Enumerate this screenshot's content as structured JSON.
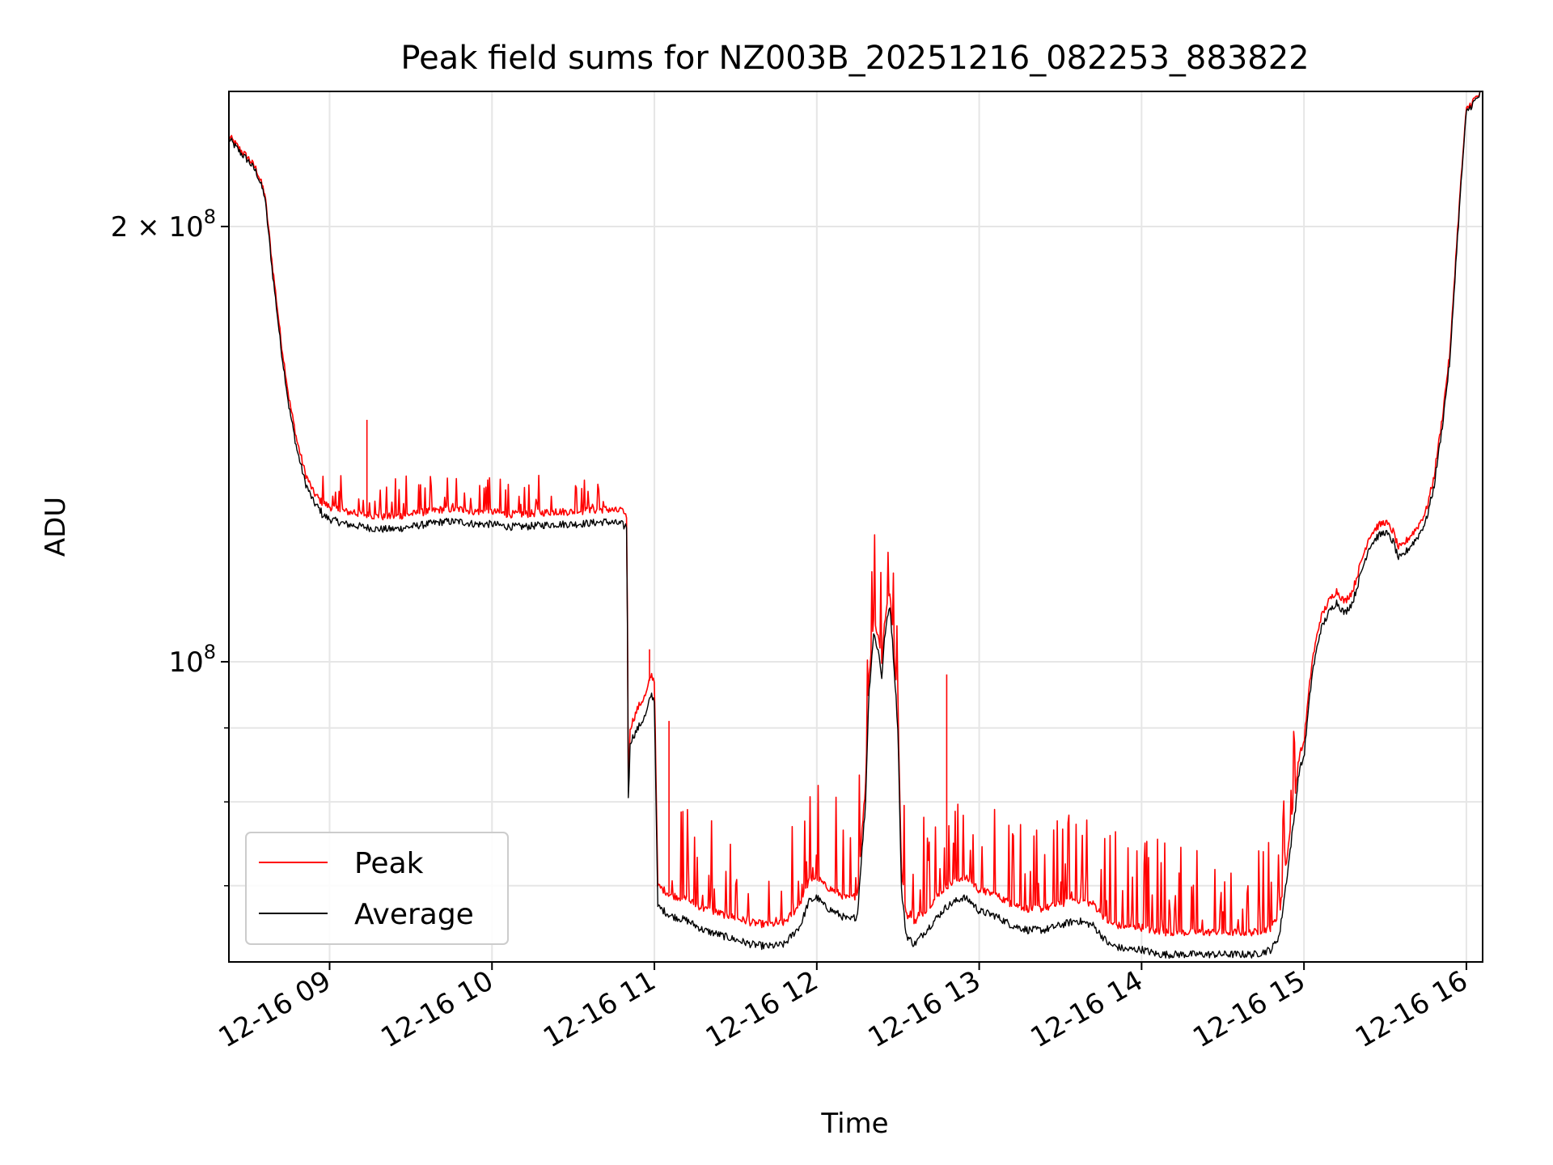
{
  "chart_data": {
    "type": "line",
    "title": "Peak field sums for NZ003B_20251216_082253_883822",
    "xlabel": "Time",
    "ylabel": "ADU",
    "yscale": "log",
    "xlim_hours": [
      8.38,
      16.1
    ],
    "ylim": [
      62000000,
      248000000
    ],
    "x_tick_hours": [
      9,
      10,
      11,
      12,
      13,
      14,
      15,
      16
    ],
    "x_tick_labels": [
      "12-16 09",
      "12-16 10",
      "12-16 11",
      "12-16 12",
      "12-16 13",
      "12-16 14",
      "12-16 15",
      "12-16 16"
    ],
    "y_major_ticks": [
      {
        "value": 100000000,
        "base": "10",
        "exp": "8"
      },
      {
        "value": 200000000,
        "mant": "2",
        "base": "10",
        "exp": "8"
      }
    ],
    "y_minor_ticks": [
      70000000,
      80000000,
      90000000
    ],
    "grid": true,
    "legend": {
      "position": "lower-left",
      "entries": [
        {
          "label": "Peak",
          "color": "#ff0000"
        },
        {
          "label": "Average",
          "color": "#000000"
        }
      ]
    },
    "series": [
      {
        "name": "Average",
        "color": "#000000",
        "x": [
          8.38,
          8.45,
          8.5,
          8.55,
          8.6,
          8.65,
          8.7,
          8.75,
          8.8,
          8.85,
          8.9,
          8.95,
          9.0,
          9.1,
          9.2,
          9.3,
          9.4,
          9.5,
          9.6,
          9.7,
          9.8,
          9.9,
          10.0,
          10.1,
          10.2,
          10.3,
          10.4,
          10.5,
          10.6,
          10.7,
          10.8,
          10.83,
          10.84,
          10.85,
          10.9,
          10.95,
          10.98,
          11.0,
          11.02,
          11.1,
          11.2,
          11.3,
          11.4,
          11.5,
          11.6,
          11.7,
          11.8,
          11.85,
          11.9,
          11.95,
          12.0,
          12.05,
          12.1,
          12.15,
          12.2,
          12.25,
          12.3,
          12.32,
          12.35,
          12.38,
          12.4,
          12.42,
          12.45,
          12.5,
          12.52,
          12.55,
          12.6,
          12.65,
          12.7,
          12.75,
          12.8,
          12.85,
          12.9,
          12.95,
          13.0,
          13.1,
          13.2,
          13.3,
          13.4,
          13.5,
          13.6,
          13.7,
          13.8,
          13.9,
          14.0,
          14.1,
          14.2,
          14.3,
          14.4,
          14.5,
          14.6,
          14.7,
          14.8,
          14.85,
          14.9,
          14.95,
          14.97,
          15.0,
          15.05,
          15.1,
          15.15,
          15.2,
          15.25,
          15.3,
          15.35,
          15.4,
          15.45,
          15.5,
          15.55,
          15.58,
          15.6,
          15.65,
          15.7,
          15.75,
          15.8,
          15.85,
          15.9,
          15.95,
          16.0,
          16.05,
          16.1
        ],
        "y": [
          230000000.0,
          225000000.0,
          222000000.0,
          218000000.0,
          210000000.0,
          185000000.0,
          165000000.0,
          150000000.0,
          140000000.0,
          133000000.0,
          129000000.0,
          127000000.0,
          126000000.0,
          125000000.0,
          124500000.0,
          124000000.0,
          124000000.0,
          124500000.0,
          125000000.0,
          125500000.0,
          125500000.0,
          125000000.0,
          125000000.0,
          124500000.0,
          124500000.0,
          124800000.0,
          125000000.0,
          125000000.0,
          125200000.0,
          125500000.0,
          125000000.0,
          124000000.0,
          78000000.0,
          88000000.0,
          90000000.0,
          92000000.0,
          95000000.0,
          94000000.0,
          68000000.0,
          67000000.0,
          66500000.0,
          65500000.0,
          65000000.0,
          64500000.0,
          64000000.0,
          63800000.0,
          64000000.0,
          65000000.0,
          66000000.0,
          68500000.0,
          69000000.0,
          68000000.0,
          67500000.0,
          67000000.0,
          66500000.0,
          67000000.0,
          80000000.0,
          95000000.0,
          105000000.0,
          102000000.0,
          98000000.0,
          105000000.0,
          110000000.0,
          90000000.0,
          70000000.0,
          65000000.0,
          64000000.0,
          65000000.0,
          66000000.0,
          67000000.0,
          68000000.0,
          68500000.0,
          69000000.0,
          68500000.0,
          67500000.0,
          67000000.0,
          66000000.0,
          65500000.0,
          65500000.0,
          66000000.0,
          66500000.0,
          66000000.0,
          64000000.0,
          63500000.0,
          63500000.0,
          63000000.0,
          63000000.0,
          63000000.0,
          63000000.0,
          63000000.0,
          63000000.0,
          63000000.0,
          63500000.0,
          65000000.0,
          72000000.0,
          80000000.0,
          84000000.0,
          86000000.0,
          98000000.0,
          105000000.0,
          108000000.0,
          110000000.0,
          108000000.0,
          110000000.0,
          115000000.0,
          120000000.0,
          122000000.0,
          123000000.0,
          121000000.0,
          118000000.0,
          118000000.0,
          120000000.0,
          122000000.0,
          125000000.0,
          132000000.0,
          145000000.0,
          162000000.0,
          200000000.0,
          240000000.0,
          244000000.0,
          248000000.0
        ]
      },
      {
        "name": "Peak",
        "color": "#ff0000",
        "x": [
          8.38,
          8.45,
          8.5,
          8.55,
          8.6,
          8.65,
          8.7,
          8.75,
          8.8,
          8.85,
          8.9,
          8.95,
          9.0,
          9.1,
          9.2,
          9.3,
          9.4,
          9.5,
          9.6,
          9.7,
          9.8,
          9.9,
          10.0,
          10.1,
          10.2,
          10.3,
          10.4,
          10.5,
          10.6,
          10.7,
          10.8,
          10.83,
          10.84,
          10.85,
          10.9,
          10.95,
          10.98,
          11.0,
          11.02,
          11.1,
          11.2,
          11.3,
          11.4,
          11.5,
          11.6,
          11.7,
          11.8,
          11.85,
          11.9,
          11.95,
          12.0,
          12.05,
          12.1,
          12.15,
          12.2,
          12.25,
          12.3,
          12.32,
          12.35,
          12.38,
          12.4,
          12.42,
          12.45,
          12.5,
          12.52,
          12.55,
          12.6,
          12.65,
          12.7,
          12.75,
          12.8,
          12.85,
          12.9,
          12.95,
          13.0,
          13.1,
          13.2,
          13.3,
          13.4,
          13.5,
          13.6,
          13.7,
          13.8,
          13.9,
          14.0,
          14.1,
          14.2,
          14.3,
          14.4,
          14.5,
          14.6,
          14.7,
          14.8,
          14.85,
          14.9,
          14.95,
          14.97,
          15.0,
          15.05,
          15.1,
          15.15,
          15.2,
          15.25,
          15.3,
          15.35,
          15.4,
          15.45,
          15.5,
          15.55,
          15.58,
          15.6,
          15.65,
          15.7,
          15.75,
          15.8,
          15.85,
          15.9,
          15.95,
          16.0,
          16.05,
          16.1
        ],
        "y": [
          231000000.0,
          226000000.0,
          223000000.0,
          219000000.0,
          211000000.0,
          187000000.0,
          167000000.0,
          152000000.0,
          142000000.0,
          135000000.0,
          131000000.0,
          129000000.0,
          128000000.0,
          127000000.0,
          126500000.0,
          126000000.0,
          126000000.0,
          126500000.0,
          127000000.0,
          127500000.0,
          127500000.0,
          127000000.0,
          127000000.0,
          126500000.0,
          126500000.0,
          126800000.0,
          127000000.0,
          127000000.0,
          127200000.0,
          127500000.0,
          127000000.0,
          126000000.0,
          80000000.0,
          90000000.0,
          93000000.0,
          95000000.0,
          98000000.0,
          97000000.0,
          70000000.0,
          69000000.0,
          68500000.0,
          67500000.0,
          67000000.0,
          66500000.0,
          66000000.0,
          65800000.0,
          66000000.0,
          67000000.0,
          68000000.0,
          70500000.0,
          71000000.0,
          70000000.0,
          69500000.0,
          69000000.0,
          68500000.0,
          69000000.0,
          82000000.0,
          97000000.0,
          107000000.0,
          104000000.0,
          100000000.0,
          107000000.0,
          112000000.0,
          92000000.0,
          72000000.0,
          67000000.0,
          66000000.0,
          67000000.0,
          68000000.0,
          69000000.0,
          70000000.0,
          70500000.0,
          71000000.0,
          70500000.0,
          69500000.0,
          69000000.0,
          68000000.0,
          67500000.0,
          67500000.0,
          68000000.0,
          68500000.0,
          68000000.0,
          66000000.0,
          65500000.0,
          65500000.0,
          65000000.0,
          65000000.0,
          65000000.0,
          65000000.0,
          65000000.0,
          65000000.0,
          65000000.0,
          65500000.0,
          67000000.0,
          74000000.0,
          82000000.0,
          86000000.0,
          88000000.0,
          100000000.0,
          107000000.0,
          110000000.0,
          112000000.0,
          110000000.0,
          112000000.0,
          117000000.0,
          122000000.0,
          124000000.0,
          125000000.0,
          123000000.0,
          120000000.0,
          120000000.0,
          122000000.0,
          124000000.0,
          127000000.0,
          134000000.0,
          147000000.0,
          164000000.0,
          202000000.0,
          241000000.0,
          245000000.0,
          248000000.0
        ]
      }
    ],
    "notable_spikes_peak": [
      {
        "x": 9.23,
        "y": 147000000
      },
      {
        "x": 10.97,
        "y": 102000000
      },
      {
        "x": 11.09,
        "y": 91000000
      },
      {
        "x": 12.8,
        "y": 98000000
      }
    ]
  }
}
